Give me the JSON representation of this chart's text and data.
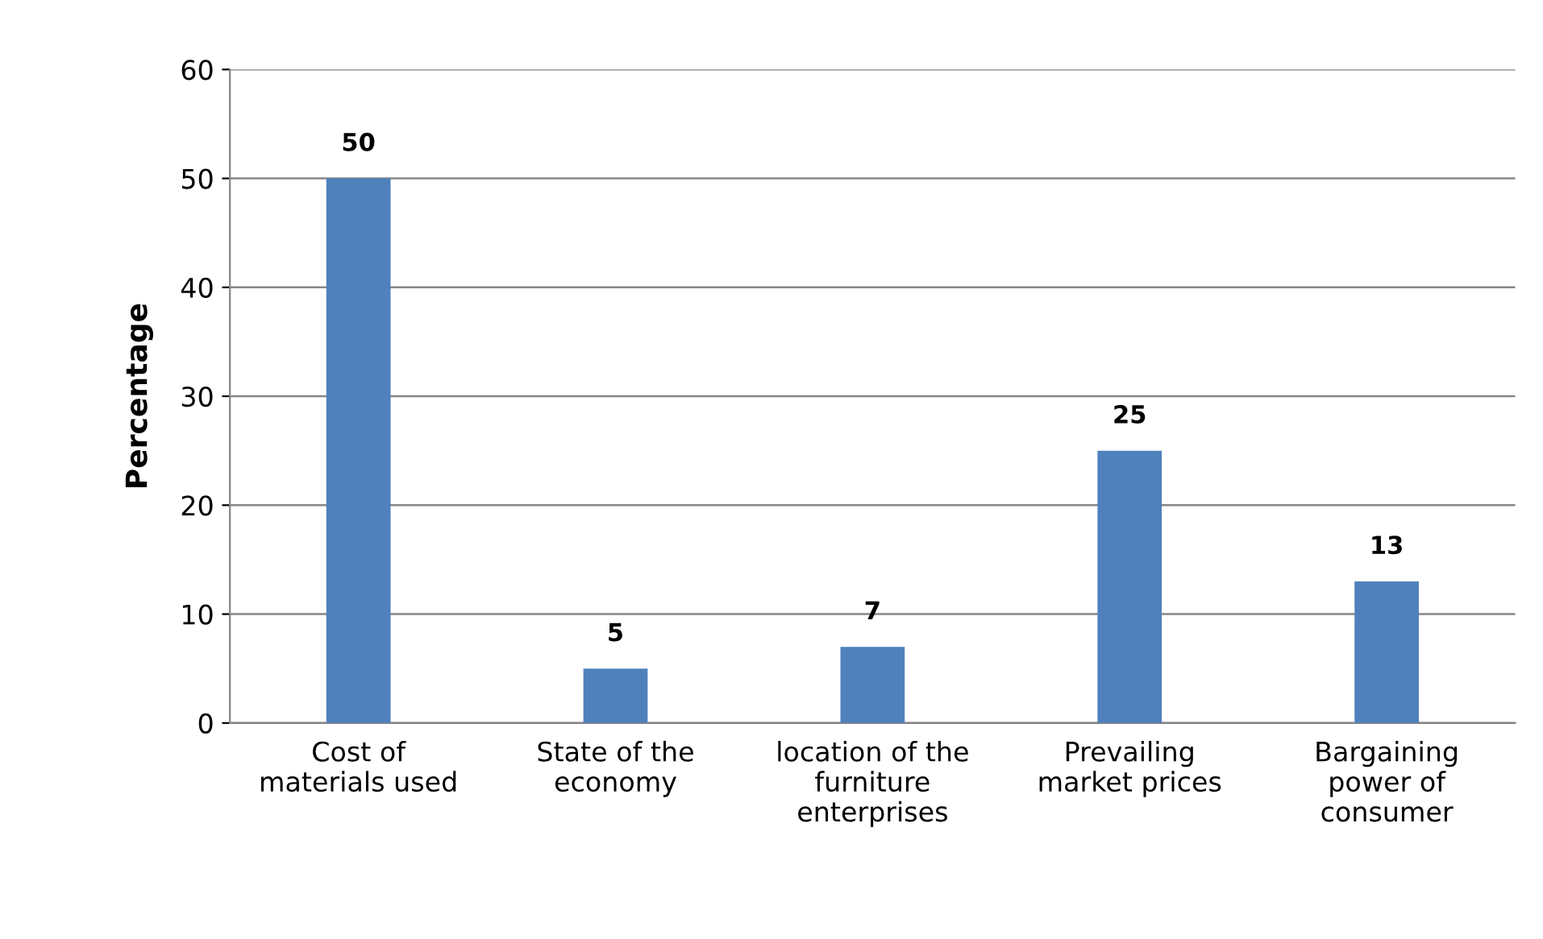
{
  "chart_data": {
    "type": "bar",
    "ylabel": "Percentage",
    "categories": [
      "Cost of\nmaterials used",
      "State of the\neconomy",
      "location of the\nfurniture\nenterprises",
      "Prevailing\nmarket prices",
      "Bargaining\npower of\nconsumer"
    ],
    "values": [
      50,
      5,
      7,
      25,
      13
    ],
    "color": "#4f81bd",
    "data_labels": true,
    "ylim": [
      0,
      60
    ],
    "yticks": [
      0,
      10,
      20,
      30,
      40,
      50,
      60
    ],
    "grid": "y",
    "legend": false
  }
}
